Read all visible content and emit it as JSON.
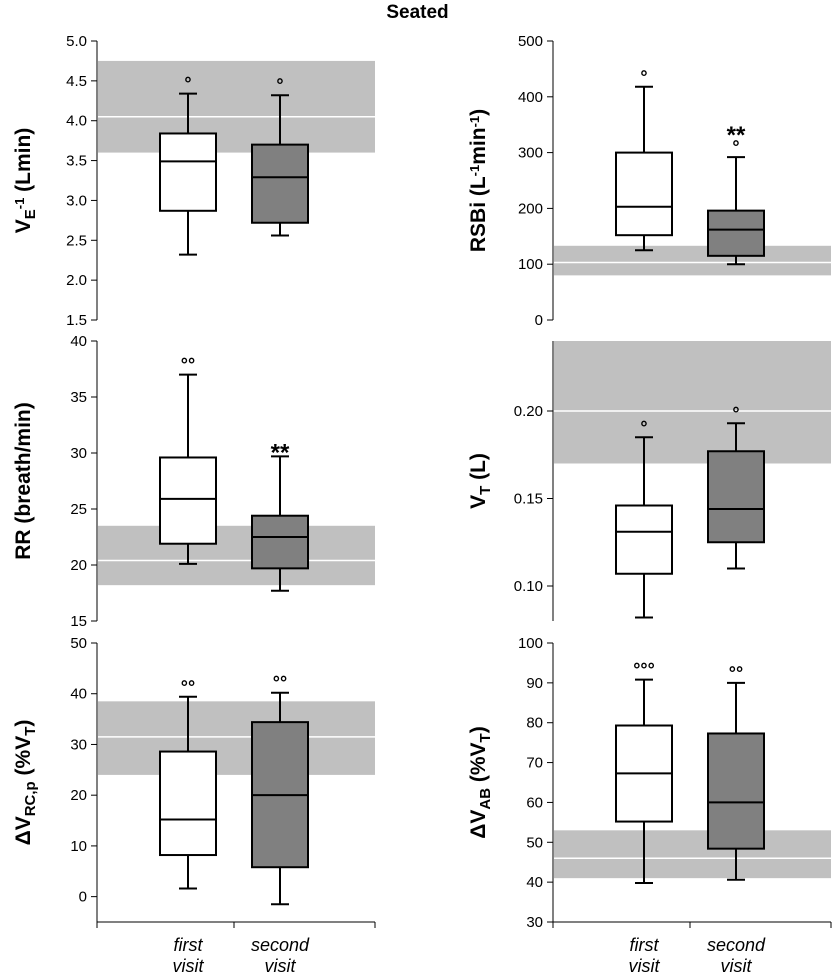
{
  "title": "Seated",
  "x_categories": [
    {
      "line1": "first",
      "line2": "visit"
    },
    {
      "line1": "second",
      "line2": "visit"
    }
  ],
  "colors": {
    "first_box": "#ffffff",
    "second_box": "#808080",
    "reference_band": "#c0c0c0",
    "reference_line": "#ffffff",
    "stroke": "#000000"
  },
  "chart_data": [
    {
      "type": "box",
      "id": "ve",
      "ylabel": {
        "main": "V",
        "sub": "E",
        "rest": " (Lmin",
        "sup": "-1",
        "end": ")"
      },
      "ylim": [
        1.5,
        5.0
      ],
      "ticks": [
        "1.5",
        "2.0",
        "2.5",
        "3.0",
        "3.5",
        "4.0",
        "4.5",
        "5.0"
      ],
      "reference": {
        "low": 3.6,
        "high": 4.75,
        "mid": 4.05
      },
      "boxes": [
        {
          "whisker_low": 2.32,
          "q1": 2.87,
          "median": 3.49,
          "q3": 3.84,
          "whisker_high": 4.34,
          "outlier_marker": "°",
          "significance": ""
        },
        {
          "whisker_low": 2.56,
          "q1": 2.72,
          "median": 3.29,
          "q3": 3.7,
          "whisker_high": 4.32,
          "outlier_marker": "°",
          "significance": ""
        }
      ]
    },
    {
      "type": "box",
      "id": "rsbi",
      "ylabel": {
        "main": "RSBi (L",
        "sup": "-1",
        "rest": "min",
        "sup2": "-1",
        "end": ")"
      },
      "ylim": [
        0,
        500
      ],
      "ticks": [
        "0",
        "100",
        "200",
        "300",
        "400",
        "500"
      ],
      "reference": {
        "low": 80,
        "high": 133,
        "mid": 103
      },
      "boxes": [
        {
          "whisker_low": 125,
          "q1": 152,
          "median": 203,
          "q3": 300,
          "whisker_high": 418,
          "outlier_marker": "°",
          "significance": ""
        },
        {
          "whisker_low": 100,
          "q1": 115,
          "median": 162,
          "q3": 196,
          "whisker_high": 292,
          "outlier_marker": "°",
          "significance": "**"
        }
      ]
    },
    {
      "type": "box",
      "id": "rr",
      "ylabel": {
        "main": "RR (breath/min)"
      },
      "ylim": [
        15,
        40
      ],
      "ticks": [
        "15",
        "20",
        "25",
        "30",
        "35",
        "40"
      ],
      "reference": {
        "low": 18.2,
        "high": 23.5,
        "mid": 20.4
      },
      "boxes": [
        {
          "whisker_low": 20.1,
          "q1": 21.9,
          "median": 25.9,
          "q3": 29.6,
          "whisker_high": 37.0,
          "outlier_marker": "°°",
          "significance": ""
        },
        {
          "whisker_low": 17.7,
          "q1": 19.7,
          "median": 22.5,
          "q3": 24.4,
          "whisker_high": 29.7,
          "outlier_marker": "",
          "significance": "**"
        }
      ]
    },
    {
      "type": "box",
      "id": "vt",
      "ylabel": {
        "main": "V",
        "sub": "T",
        "rest": " (L)"
      },
      "ylim": [
        0.08,
        0.24
      ],
      "ticks": [
        "0.10",
        "0.15",
        "0.20"
      ],
      "tick_values": [
        0.1,
        0.15,
        0.2
      ],
      "reference": {
        "low": 0.17,
        "high": 0.24,
        "mid": 0.2
      },
      "boxes": [
        {
          "whisker_low": 0.082,
          "q1": 0.107,
          "median": 0.131,
          "q3": 0.146,
          "whisker_high": 0.185,
          "outlier_marker": "°",
          "significance": ""
        },
        {
          "whisker_low": 0.11,
          "q1": 0.125,
          "median": 0.144,
          "q3": 0.177,
          "whisker_high": 0.193,
          "outlier_marker": "°",
          "significance": ""
        }
      ]
    },
    {
      "type": "box",
      "id": "rc",
      "ylabel": {
        "main": "ΔV",
        "sub": "RC,p",
        "rest": " (%V",
        "sub2": "T",
        "end": ")"
      },
      "ylim": [
        -5,
        50
      ],
      "ticks": [
        "0",
        "10",
        "20",
        "30",
        "40",
        "50"
      ],
      "tick_values": [
        0,
        10,
        20,
        30,
        40,
        50
      ],
      "reference": {
        "low": 24,
        "high": 38.5,
        "mid": 31.5
      },
      "boxes": [
        {
          "whisker_low": 1.6,
          "q1": 8.2,
          "median": 15.2,
          "q3": 28.6,
          "whisker_high": 39.4,
          "outlier_marker": "°°",
          "significance": ""
        },
        {
          "whisker_low": -1.5,
          "q1": 5.8,
          "median": 20.0,
          "q3": 34.4,
          "whisker_high": 40.2,
          "outlier_marker": "°°",
          "significance": ""
        }
      ]
    },
    {
      "type": "box",
      "id": "ab",
      "ylabel": {
        "main": "ΔV",
        "sub": "AB",
        "rest": " (%V",
        "sub2": "T",
        "end": ")"
      },
      "ylim": [
        30,
        100
      ],
      "ticks": [
        "30",
        "40",
        "50",
        "60",
        "70",
        "80",
        "90",
        "100"
      ],
      "reference": {
        "low": 41,
        "high": 53,
        "mid": 46
      },
      "boxes": [
        {
          "whisker_low": 39.8,
          "q1": 55.2,
          "median": 67.3,
          "q3": 79.3,
          "whisker_high": 90.8,
          "outlier_marker": "°°°",
          "significance": ""
        },
        {
          "whisker_low": 40.6,
          "q1": 48.4,
          "median": 60.0,
          "q3": 77.3,
          "whisker_high": 90.0,
          "outlier_marker": "°°",
          "significance": ""
        }
      ]
    }
  ]
}
